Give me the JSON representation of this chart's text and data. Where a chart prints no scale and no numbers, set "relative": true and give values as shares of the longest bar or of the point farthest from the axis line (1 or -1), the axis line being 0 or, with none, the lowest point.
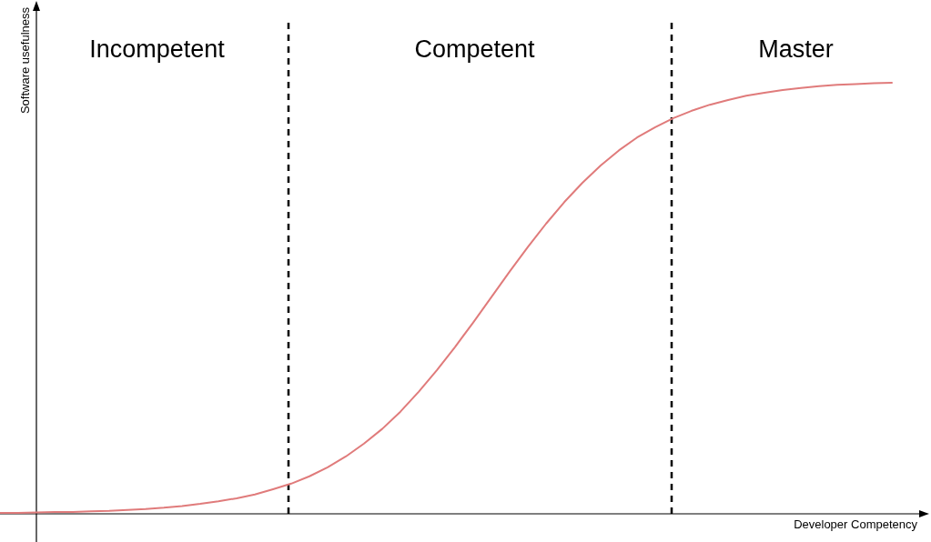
{
  "chart_data": {
    "type": "line",
    "relative": true,
    "xlabel": "Developer Competency",
    "ylabel": "Software usefulness",
    "categories": [
      null,
      null,
      null,
      null,
      null,
      null,
      null,
      null,
      null,
      null,
      null,
      null,
      null,
      null,
      null,
      null,
      null,
      null,
      null,
      null,
      null,
      null,
      null,
      null,
      null,
      null,
      null,
      null,
      null,
      null,
      null,
      null,
      null,
      null,
      null,
      null,
      null,
      null,
      null,
      null,
      null,
      null,
      null,
      null,
      null,
      null,
      null,
      null,
      null,
      null
    ],
    "series": [
      {
        "color": "#e07b7b",
        "values": [
          0.002,
          0.002,
          0.003,
          0.004,
          0.004,
          0.006,
          0.007,
          0.009,
          0.011,
          0.014,
          0.018,
          0.023,
          0.029,
          0.036,
          0.045,
          0.057,
          0.07,
          0.087,
          0.108,
          0.133,
          0.163,
          0.197,
          0.237,
          0.283,
          0.333,
          0.387,
          0.444,
          0.503,
          0.562,
          0.619,
          0.673,
          0.723,
          0.768,
          0.808,
          0.843,
          0.873,
          0.897,
          0.918,
          0.935,
          0.949,
          0.96,
          0.97,
          0.977,
          0.983,
          0.988,
          0.992,
          0.995,
          0.997,
          0.999,
          1
        ]
      }
    ],
    "annotations": [
      "Incompetent",
      "Competent",
      "Master"
    ],
    "marker": "none",
    "line_style": "solid"
  }
}
